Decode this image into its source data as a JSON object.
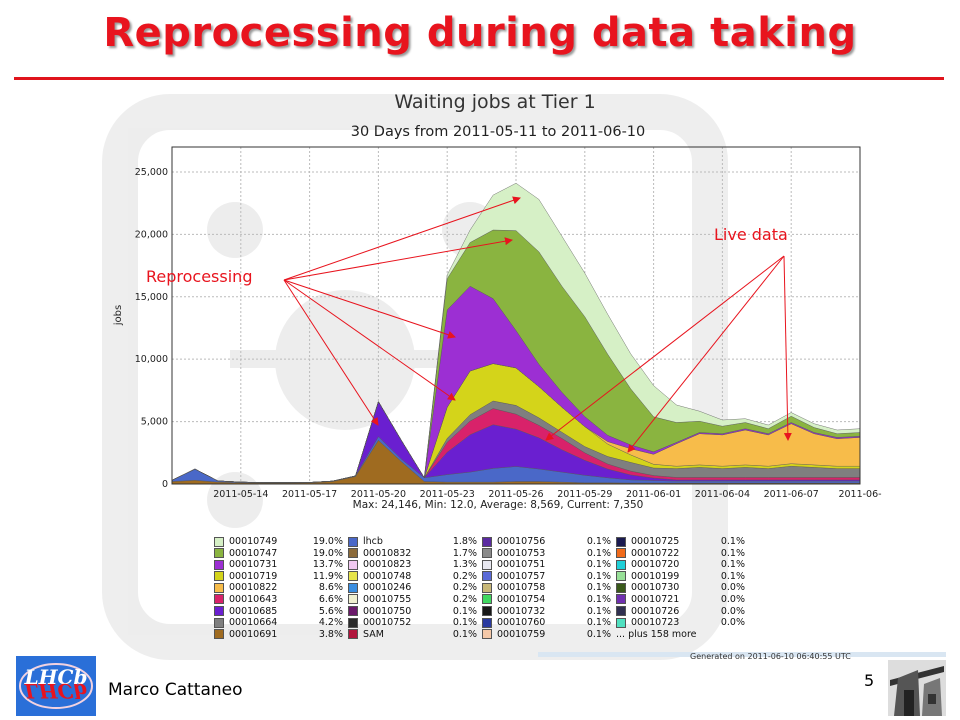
{
  "slide": {
    "title": "Reprocessing during data taking",
    "author": "Marco Cattaneo",
    "page_number": "5",
    "generated": "Generated on 2011-06-10 06:40:55 UTC"
  },
  "annotations": {
    "reprocessing": "Reprocessing",
    "live_data": "Live data"
  },
  "colors": {
    "title": "#e8141e",
    "arrow": "#e8141e"
  },
  "chart_data": {
    "type": "area",
    "title": "Waiting jobs at Tier 1",
    "subtitle": "30 Days from 2011-05-11 to 2011-06-10",
    "ylabel": "jobs",
    "xlabel": "",
    "ylim": [
      0,
      27000
    ],
    "xlim": [
      0,
      30
    ],
    "y_ticks": [
      0,
      5000,
      10000,
      15000,
      20000,
      25000
    ],
    "y_tick_labels": [
      "0",
      "5,000",
      "10,000",
      "15,000",
      "20,000",
      "25,000"
    ],
    "x_ticks": [
      3,
      6,
      9,
      12,
      15,
      18,
      21,
      24,
      27,
      30
    ],
    "x_tick_labels": [
      "2011-05-14",
      "2011-05-17",
      "2011-05-20",
      "2011-05-23",
      "2011-05-26",
      "2011-05-29",
      "2011-06-01",
      "2011-06-04",
      "2011-06-07",
      "2011-06-"
    ],
    "stats": "Max: 24,146, Min: 12.0, Average: 8,569, Current: 7,350",
    "grid": true,
    "legend_position": "bottom",
    "x": [
      0,
      1,
      2,
      3,
      4,
      5,
      6,
      7,
      8,
      9,
      10,
      11,
      12,
      13,
      14,
      15,
      16,
      17,
      18,
      19,
      20,
      21,
      22,
      23,
      24,
      25,
      26,
      27,
      28,
      29,
      30
    ],
    "series": [
      {
        "name": "00010691",
        "color": "#9f6b20",
        "values": [
          200,
          300,
          150,
          100,
          80,
          80,
          100,
          200,
          600,
          3500,
          1800,
          200,
          150,
          150,
          150,
          200,
          200,
          150,
          100,
          100,
          80,
          80,
          80,
          80,
          80,
          80,
          80,
          80,
          80,
          80,
          80
        ]
      },
      {
        "name": "lhcb",
        "color": "#4a68c8",
        "values": [
          100,
          900,
          100,
          50,
          30,
          30,
          30,
          30,
          50,
          300,
          200,
          300,
          600,
          800,
          1100,
          1200,
          1000,
          800,
          600,
          400,
          250,
          200,
          150,
          150,
          150,
          150,
          150,
          150,
          150,
          150,
          150
        ]
      },
      {
        "name": "00010685",
        "color": "#6a1fd0",
        "values": [
          0,
          0,
          0,
          0,
          0,
          0,
          0,
          0,
          0,
          2800,
          1500,
          0,
          1800,
          3000,
          3500,
          3000,
          2500,
          1800,
          1200,
          700,
          400,
          200,
          100,
          100,
          100,
          100,
          100,
          100,
          100,
          100,
          100
        ]
      },
      {
        "name": "00010643",
        "color": "#d8226a",
        "values": [
          0,
          0,
          0,
          0,
          0,
          0,
          0,
          0,
          0,
          0,
          0,
          0,
          800,
          1100,
          1300,
          1200,
          1000,
          900,
          600,
          400,
          300,
          200,
          200,
          200,
          200,
          200,
          200,
          200,
          200,
          200,
          200
        ]
      },
      {
        "name": "00010664",
        "color": "#7f7f7f",
        "values": [
          0,
          0,
          0,
          0,
          0,
          0,
          0,
          0,
          0,
          0,
          0,
          0,
          300,
          500,
          600,
          700,
          600,
          500,
          500,
          600,
          700,
          600,
          700,
          800,
          700,
          800,
          700,
          900,
          800,
          700,
          700
        ]
      },
      {
        "name": "00010719",
        "color": "#d4d41a",
        "values": [
          0,
          0,
          0,
          0,
          0,
          0,
          0,
          0,
          0,
          0,
          0,
          0,
          2500,
          3500,
          3000,
          3000,
          2500,
          2000,
          1600,
          1000,
          600,
          300,
          200,
          200,
          200,
          200,
          200,
          200,
          200,
          200,
          200
        ]
      },
      {
        "name": "00010822",
        "color": "#f7bc4a",
        "values": [
          0,
          0,
          0,
          0,
          0,
          0,
          0,
          0,
          0,
          0,
          0,
          0,
          0,
          0,
          0,
          0,
          0,
          0,
          0,
          200,
          500,
          800,
          1800,
          2500,
          2500,
          2800,
          2500,
          3200,
          2500,
          2200,
          2300
        ]
      },
      {
        "name": "00010731",
        "color": "#9c2fd3",
        "values": [
          0,
          0,
          0,
          0,
          0,
          0,
          0,
          0,
          0,
          0,
          0,
          0,
          7800,
          6800,
          5200,
          3000,
          1800,
          1200,
          800,
          500,
          300,
          200,
          100,
          100,
          100,
          100,
          100,
          100,
          100,
          100,
          100
        ]
      },
      {
        "name": "00010747",
        "color": "#8ab440",
        "values": [
          0,
          0,
          0,
          0,
          0,
          0,
          0,
          0,
          0,
          0,
          0,
          0,
          2500,
          3500,
          5500,
          8000,
          9000,
          8500,
          8000,
          6500,
          4500,
          2800,
          1600,
          900,
          600,
          500,
          400,
          500,
          400,
          300,
          300
        ]
      },
      {
        "name": "00010749",
        "color": "#d6f0c6",
        "values": [
          0,
          0,
          0,
          0,
          0,
          0,
          0,
          0,
          0,
          0,
          0,
          0,
          300,
          1000,
          2800,
          3800,
          4200,
          4000,
          3500,
          3200,
          2800,
          2500,
          1400,
          800,
          500,
          300,
          300,
          300,
          300,
          300,
          300
        ]
      }
    ]
  },
  "legend": {
    "col1": [
      {
        "name": "00010749",
        "pct": "19.0%",
        "color": "#d6f0c6"
      },
      {
        "name": "00010747",
        "pct": "19.0%",
        "color": "#8ab440"
      },
      {
        "name": "00010731",
        "pct": "13.7%",
        "color": "#9c2fd3"
      },
      {
        "name": "00010719",
        "pct": "11.9%",
        "color": "#d4d41a"
      },
      {
        "name": "00010822",
        "pct": "8.6%",
        "color": "#f7bc4a"
      },
      {
        "name": "00010643",
        "pct": "6.6%",
        "color": "#d8226a"
      },
      {
        "name": "00010685",
        "pct": "5.6%",
        "color": "#6a1fd0"
      },
      {
        "name": "00010664",
        "pct": "4.2%",
        "color": "#7f7f7f"
      },
      {
        "name": "00010691",
        "pct": "3.8%",
        "color": "#9f6b20"
      }
    ],
    "col2": [
      {
        "name": "lhcb",
        "pct": "1.8%",
        "color": "#4a68c8"
      },
      {
        "name": "00010832",
        "pct": "1.7%",
        "color": "#8b6a3a"
      },
      {
        "name": "00010823",
        "pct": "1.3%",
        "color": "#f0c8f0"
      },
      {
        "name": "00010748",
        "pct": "0.2%",
        "color": "#e6e44a"
      },
      {
        "name": "00010246",
        "pct": "0.2%",
        "color": "#3a8ee0"
      },
      {
        "name": "00010755",
        "pct": "0.2%",
        "color": "#f0f0d0"
      },
      {
        "name": "00010750",
        "pct": "0.1%",
        "color": "#6a1a6a"
      },
      {
        "name": "00010752",
        "pct": "0.1%",
        "color": "#2a2a2a"
      },
      {
        "name": "SAM",
        "pct": "0.1%",
        "color": "#b0143c"
      }
    ],
    "col3": [
      {
        "name": "00010756",
        "pct": "0.1%",
        "color": "#5a2aa0"
      },
      {
        "name": "00010753",
        "pct": "0.1%",
        "color": "#8a8a8a"
      },
      {
        "name": "00010751",
        "pct": "0.1%",
        "color": "#e8e8f0"
      },
      {
        "name": "00010757",
        "pct": "0.1%",
        "color": "#5a6ad8"
      },
      {
        "name": "00010758",
        "pct": "0.1%",
        "color": "#c8b878"
      },
      {
        "name": "00010754",
        "pct": "0.1%",
        "color": "#40d860"
      },
      {
        "name": "00010732",
        "pct": "0.1%",
        "color": "#181818"
      },
      {
        "name": "00010760",
        "pct": "0.1%",
        "color": "#2a3aa0"
      },
      {
        "name": "00010759",
        "pct": "0.1%",
        "color": "#f4c8a8"
      }
    ],
    "col4": [
      {
        "name": "00010725",
        "pct": "0.1%",
        "color": "#1a1a50"
      },
      {
        "name": "00010722",
        "pct": "0.1%",
        "color": "#f06a1a"
      },
      {
        "name": "00010720",
        "pct": "0.1%",
        "color": "#20d0d8"
      },
      {
        "name": "00010199",
        "pct": "0.1%",
        "color": "#98e098"
      },
      {
        "name": "00010730",
        "pct": "0.0%",
        "color": "#3a5a1a"
      },
      {
        "name": "00010721",
        "pct": "0.0%",
        "color": "#7030b0"
      },
      {
        "name": "00010726",
        "pct": "0.0%",
        "color": "#303050"
      },
      {
        "name": "00010723",
        "pct": "0.0%",
        "color": "#50e0c0"
      }
    ],
    "more": "... plus 158 more"
  }
}
